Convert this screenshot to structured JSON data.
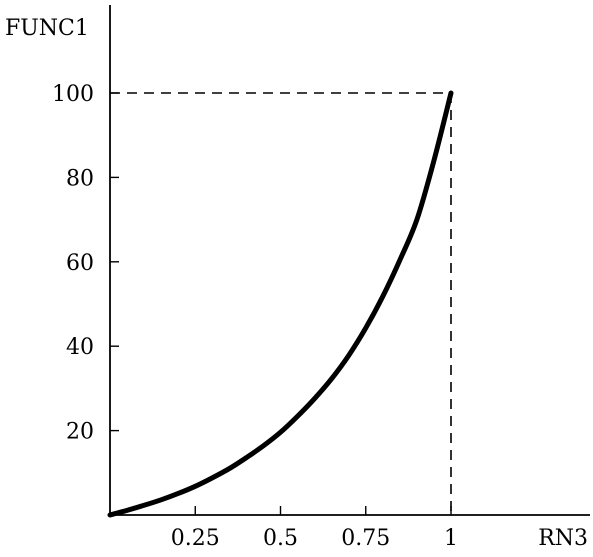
{
  "chart_data": {
    "type": "line",
    "title": "",
    "xlabel": "RN3",
    "ylabel": "FUNC1",
    "xlim": [
      0,
      1.4
    ],
    "ylim": [
      0,
      120
    ],
    "x_ticks": [
      {
        "value": 0.25,
        "label": "0.25"
      },
      {
        "value": 0.5,
        "label": "0.5"
      },
      {
        "value": 0.75,
        "label": "0.75"
      },
      {
        "value": 1,
        "label": "1"
      }
    ],
    "y_ticks": [
      {
        "value": 20,
        "label": "20"
      },
      {
        "value": 40,
        "label": "40"
      },
      {
        "value": 60,
        "label": "60"
      },
      {
        "value": 80,
        "label": "80"
      },
      {
        "value": 100,
        "label": "100"
      }
    ],
    "guide_point": {
      "x": 1,
      "y": 100
    },
    "grid": false,
    "series": [
      {
        "x": [
          0,
          0.05,
          0.1,
          0.15,
          0.2,
          0.25,
          0.3,
          0.35,
          0.4,
          0.45,
          0.5,
          0.55,
          0.6,
          0.65,
          0.7,
          0.75,
          0.8,
          0.85,
          0.9,
          0.95,
          1
        ],
        "y": [
          0,
          1.1,
          2.3,
          3.6,
          5.1,
          6.8,
          8.8,
          11.0,
          13.6,
          16.4,
          19.6,
          23.4,
          27.6,
          32.3,
          37.8,
          44.3,
          51.8,
          60.4,
          70.0,
          84.0,
          100
        ]
      }
    ],
    "colors": {
      "axis": "#000000",
      "curve": "#000000",
      "background": "#ffffff"
    }
  }
}
